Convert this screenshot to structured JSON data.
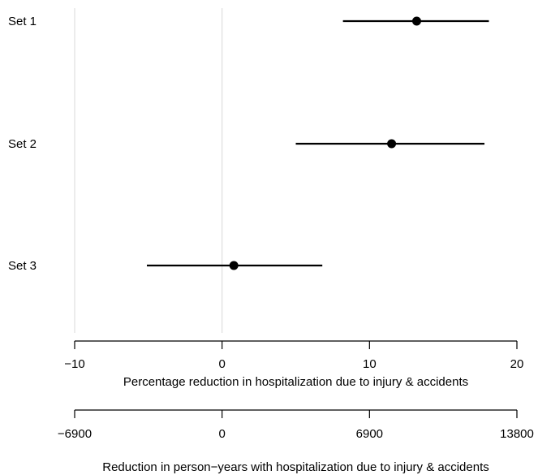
{
  "chart_data": {
    "type": "scatter",
    "subtype": "forest-plot",
    "categories": [
      "Set 1",
      "Set 2",
      "Set 3"
    ],
    "points": [
      {
        "label": "Set 1",
        "estimate": 13.2,
        "lower": 8.2,
        "upper": 18.1
      },
      {
        "label": "Set 2",
        "estimate": 11.5,
        "lower": 5.0,
        "upper": 17.8
      },
      {
        "label": "Set 3",
        "estimate": 0.8,
        "lower": -5.1,
        "upper": 6.8
      }
    ],
    "xaxis": {
      "label": "Percentage reduction in hospitalization due to injury & accidents",
      "range": [
        -10,
        20
      ],
      "ticks": [
        -10,
        0,
        10,
        20
      ],
      "tick_labels": [
        "−10",
        "0",
        "10",
        "20"
      ]
    },
    "secondary_xaxis": {
      "label": "Reduction in person−years with hospitalization due to injury & accidents",
      "range": [
        -6900,
        13800
      ],
      "ticks": [
        -6900,
        0,
        6900,
        13800
      ],
      "tick_labels": [
        "−6900",
        "0",
        "6900",
        "13800"
      ]
    },
    "reference_lines": [
      -10,
      0
    ],
    "grid": false
  }
}
